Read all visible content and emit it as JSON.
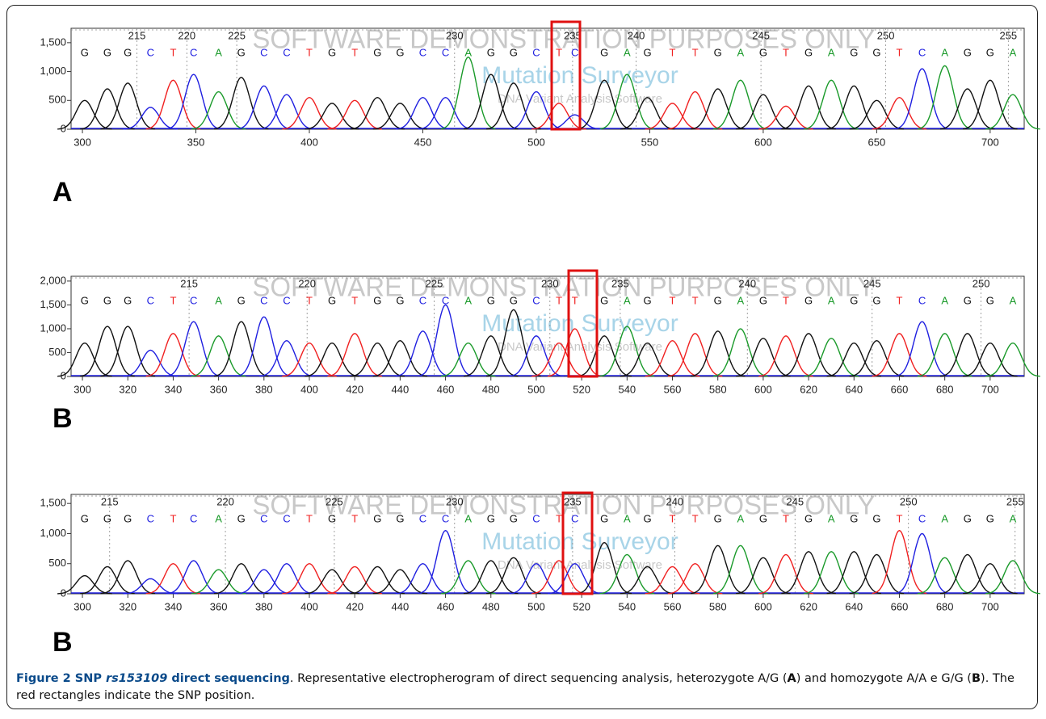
{
  "watermark": [
    "SOFTWARE DEMONSTRATION PURPOSES ONLY",
    "Mutation Surveyor",
    "DNA Variant Analysis Software"
  ],
  "base_colors": {
    "G": "#111111",
    "C": "#1f1fe0",
    "T": "#f02020",
    "A": "#1a9a2a"
  },
  "chart_data": [
    {
      "type": "chromatogram",
      "panel_label": "A",
      "xlim": [
        295,
        715
      ],
      "xticks": [
        300,
        350,
        400,
        450,
        500,
        550,
        600,
        650,
        700
      ],
      "ylim": [
        0,
        1750
      ],
      "yticks": [
        0,
        500,
        {
          "value": 1000,
          "label": "1,000"
        },
        {
          "value": 1500,
          "label": "1,500"
        }
      ],
      "base_numbers": [
        215,
        220,
        225,
        230,
        235,
        240,
        245,
        250,
        255
      ],
      "base_number_x": [
        324,
        346,
        368,
        464,
        516,
        544,
        599,
        654,
        708
      ],
      "bases": [
        "G",
        "G",
        "G",
        "C",
        "T",
        "C",
        "A",
        "G",
        "C",
        "C",
        "T",
        "G",
        "T",
        "G",
        "G",
        "C",
        "C",
        "A",
        "G",
        "G",
        "C",
        "T",
        "C",
        "G",
        "A",
        "G",
        "T",
        "T",
        "G",
        "A",
        "G",
        "T",
        "G",
        "A",
        "G",
        "G",
        "T",
        "C",
        "A",
        "G",
        "G",
        "A"
      ],
      "positions": [
        301,
        311,
        320,
        330,
        340,
        349,
        360,
        370,
        380,
        390,
        400,
        410,
        420,
        430,
        440,
        450,
        460,
        470,
        480,
        490,
        500,
        510,
        517,
        530,
        540,
        549,
        560,
        570,
        580,
        590,
        600,
        610,
        620,
        630,
        640,
        650,
        660,
        670,
        680,
        690,
        700,
        710
      ],
      "heights": [
        500,
        700,
        800,
        380,
        850,
        950,
        650,
        900,
        750,
        600,
        550,
        450,
        500,
        550,
        450,
        550,
        550,
        1250,
        950,
        800,
        650,
        450,
        250,
        850,
        950,
        550,
        450,
        650,
        700,
        850,
        600,
        400,
        750,
        850,
        750,
        500,
        550,
        1050,
        1100,
        700,
        850,
        600
      ]
    },
    {
      "type": "chromatogram",
      "panel_label": "B",
      "xlim": [
        295,
        715
      ],
      "xticks": [
        300,
        320,
        340,
        360,
        380,
        400,
        420,
        440,
        460,
        480,
        500,
        520,
        540,
        560,
        580,
        600,
        620,
        640,
        660,
        680,
        700
      ],
      "ylim": [
        0,
        2100
      ],
      "yticks": [
        0,
        500,
        {
          "value": 1000,
          "label": "1,000"
        },
        {
          "value": 1500,
          "label": "1,500"
        },
        {
          "value": 2000,
          "label": "2,000"
        }
      ],
      "base_numbers": [
        215,
        220,
        225,
        230,
        235,
        240,
        245,
        250
      ],
      "base_number_x": [
        347,
        399,
        455,
        506,
        537,
        593,
        648,
        696
      ],
      "bases": [
        "G",
        "G",
        "G",
        "C",
        "T",
        "C",
        "A",
        "G",
        "C",
        "C",
        "T",
        "G",
        "T",
        "G",
        "G",
        "C",
        "C",
        "A",
        "G",
        "G",
        "C",
        "T",
        "T",
        "G",
        "A",
        "G",
        "T",
        "T",
        "G",
        "A",
        "G",
        "T",
        "G",
        "A",
        "G",
        "G",
        "T",
        "C",
        "A",
        "G",
        "G",
        "A"
      ],
      "positions": [
        301,
        311,
        320,
        330,
        340,
        349,
        360,
        370,
        380,
        390,
        400,
        410,
        420,
        430,
        440,
        450,
        460,
        470,
        480,
        490,
        500,
        510,
        517,
        530,
        540,
        549,
        560,
        570,
        580,
        590,
        600,
        610,
        620,
        630,
        640,
        650,
        660,
        670,
        680,
        690,
        700,
        710
      ],
      "heights": [
        700,
        1050,
        1050,
        550,
        900,
        1150,
        850,
        1150,
        1250,
        750,
        700,
        700,
        900,
        700,
        750,
        950,
        1500,
        700,
        850,
        1400,
        850,
        700,
        1000,
        850,
        1050,
        700,
        750,
        900,
        950,
        1000,
        800,
        850,
        900,
        800,
        700,
        750,
        900,
        1150,
        900,
        900,
        700,
        700
      ]
    },
    {
      "type": "chromatogram",
      "panel_label": "B",
      "xlim": [
        295,
        715
      ],
      "xticks": [
        300,
        320,
        340,
        360,
        380,
        400,
        420,
        440,
        460,
        480,
        500,
        520,
        540,
        560,
        580,
        600,
        620,
        640,
        660,
        680,
        700
      ],
      "ylim": [
        0,
        1650
      ],
      "yticks": [
        0,
        500,
        {
          "value": 1000,
          "label": "1,000"
        },
        {
          "value": 1500,
          "label": "1,500"
        }
      ],
      "base_numbers": [
        215,
        220,
        225,
        230,
        235,
        240,
        245,
        250,
        255
      ],
      "base_number_x": [
        312,
        363,
        411,
        464,
        516,
        561,
        614,
        664,
        711
      ],
      "bases": [
        "G",
        "G",
        "G",
        "C",
        "T",
        "C",
        "A",
        "G",
        "C",
        "C",
        "T",
        "G",
        "T",
        "G",
        "G",
        "C",
        "C",
        "A",
        "G",
        "G",
        "C",
        "T",
        "C",
        "G",
        "A",
        "G",
        "T",
        "T",
        "G",
        "A",
        "G",
        "T",
        "G",
        "A",
        "G",
        "G",
        "T",
        "C",
        "A",
        "G",
        "G",
        "A"
      ],
      "positions": [
        301,
        311,
        320,
        330,
        340,
        349,
        360,
        370,
        380,
        390,
        400,
        410,
        420,
        430,
        440,
        450,
        460,
        470,
        480,
        490,
        500,
        510,
        517,
        530,
        540,
        549,
        560,
        570,
        580,
        590,
        600,
        610,
        620,
        630,
        640,
        650,
        660,
        670,
        680,
        690,
        700,
        710
      ],
      "heights": [
        300,
        450,
        550,
        250,
        500,
        550,
        400,
        500,
        400,
        500,
        500,
        400,
        450,
        450,
        400,
        500,
        1050,
        550,
        550,
        600,
        500,
        550,
        500,
        850,
        650,
        450,
        450,
        500,
        800,
        800,
        600,
        650,
        700,
        700,
        700,
        650,
        1050,
        1000,
        600,
        650,
        500,
        550
      ]
    }
  ],
  "caption": {
    "label": "Figure 2 SNP ",
    "rs": "rs153109",
    "title": " direct sequencing",
    "text1": ". Representative electropherogram of direct sequencing analysis, heterozygote A/G (",
    "a": "A",
    "text2": ") and homozygote A/A e G/G (",
    "b": "B",
    "text3": "). The red rectangles indicate the SNP position."
  }
}
